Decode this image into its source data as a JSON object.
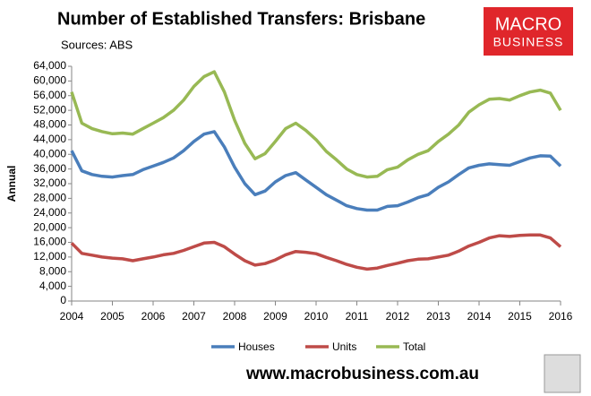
{
  "chart_data": {
    "type": "line",
    "title": "Number of Established Transfers: Brisbane",
    "subtitle": "Sources: ABS",
    "y_label": "Annual",
    "logo": [
      "MACRO",
      "BUSINESS"
    ],
    "footer": "www.macrobusiness.com.au",
    "x": [
      2004,
      2004.25,
      2004.5,
      2004.75,
      2005,
      2005.25,
      2005.5,
      2005.75,
      2006,
      2006.25,
      2006.5,
      2006.75,
      2007,
      2007.25,
      2007.5,
      2007.75,
      2008,
      2008.25,
      2008.5,
      2008.75,
      2009,
      2009.25,
      2009.5,
      2009.75,
      2010,
      2010.25,
      2010.5,
      2010.75,
      2011,
      2011.25,
      2011.5,
      2011.75,
      2012,
      2012.25,
      2012.5,
      2012.75,
      2013,
      2013.25,
      2013.5,
      2013.75,
      2014,
      2014.25,
      2014.5,
      2014.75,
      2015,
      2015.25,
      2015.5,
      2015.75,
      2016
    ],
    "xlim": [
      2004,
      2016
    ],
    "xticks": [
      2004,
      2005,
      2006,
      2007,
      2008,
      2009,
      2010,
      2011,
      2012,
      2013,
      2014,
      2015,
      2016
    ],
    "ylim": [
      0,
      64000
    ],
    "yticks": [
      0,
      {
        "value": 4000,
        "label": "4,000"
      },
      {
        "value": 8000,
        "label": "8,000"
      },
      {
        "value": 12000,
        "label": "12,000"
      },
      {
        "value": 16000,
        "label": "16,000"
      },
      {
        "value": 20000,
        "label": "20,000"
      },
      {
        "value": 24000,
        "label": "24,000"
      },
      {
        "value": 28000,
        "label": "28,000"
      },
      {
        "value": 32000,
        "label": "32,000"
      },
      {
        "value": 36000,
        "label": "36,000"
      },
      {
        "value": 40000,
        "label": "40,000"
      },
      {
        "value": 44000,
        "label": "44,000"
      },
      {
        "value": 48000,
        "label": "48,000"
      },
      {
        "value": 52000,
        "label": "52,000"
      },
      {
        "value": 56000,
        "label": "56,000"
      },
      {
        "value": 60000,
        "label": "60,000"
      },
      {
        "value": 64000,
        "label": "64,000"
      }
    ],
    "grid": false,
    "legend": "bottom",
    "series": [
      {
        "name": "Houses",
        "color": "#4a7ebb",
        "values": [
          41000,
          35500,
          34500,
          34000,
          33800,
          34200,
          34500,
          35800,
          36800,
          37800,
          39000,
          41000,
          43500,
          45500,
          46200,
          42000,
          36500,
          32000,
          29000,
          30000,
          32500,
          34200,
          35000,
          33000,
          31000,
          29000,
          27500,
          26000,
          25200,
          24800,
          24800,
          25800,
          26000,
          27000,
          28200,
          29000,
          31000,
          32500,
          34500,
          36300,
          37000,
          37400,
          37200,
          37000,
          38000,
          39000,
          39600,
          39500,
          36800
        ]
      },
      {
        "name": "Units",
        "color": "#be4b48",
        "values": [
          15800,
          13000,
          12500,
          12000,
          11700,
          11500,
          11000,
          11500,
          12000,
          12600,
          13000,
          13800,
          14800,
          15800,
          16000,
          14800,
          12800,
          11000,
          9800,
          10200,
          11200,
          12600,
          13500,
          13300,
          12900,
          11900,
          11000,
          10000,
          9200,
          8700,
          9000,
          9700,
          10300,
          11000,
          11400,
          11500,
          12000,
          12500,
          13600,
          15000,
          16000,
          17200,
          17800,
          17600,
          17900,
          18000,
          18000,
          17200,
          14800
        ]
      },
      {
        "name": "Total",
        "color": "#98b954",
        "values": [
          57000,
          48500,
          47000,
          46200,
          45600,
          45800,
          45500,
          47000,
          48500,
          50000,
          52000,
          54800,
          58500,
          61200,
          62500,
          57000,
          49300,
          43000,
          38800,
          40200,
          43500,
          47000,
          48500,
          46500,
          44000,
          40800,
          38500,
          36000,
          34500,
          33800,
          34000,
          35800,
          36500,
          38500,
          40000,
          41000,
          43500,
          45500,
          48000,
          51500,
          53500,
          55000,
          55200,
          54800,
          56000,
          57000,
          57500,
          56700,
          52000
        ]
      }
    ]
  }
}
